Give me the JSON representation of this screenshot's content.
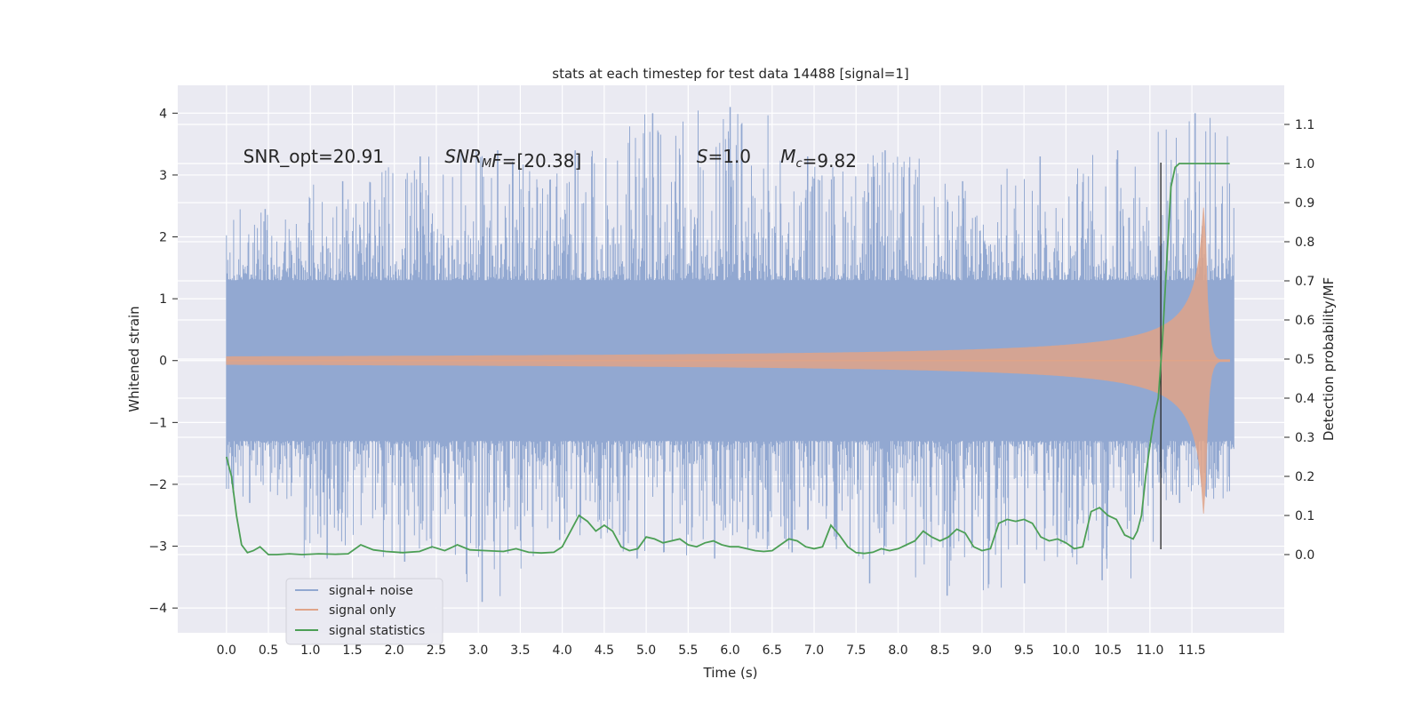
{
  "chart_data": {
    "type": "line",
    "title": "stats at each timestep for test data 14488 [signal=1]",
    "xlabel": "Time (s)",
    "ylabel": "Whitened strain",
    "y2label": "Detection probability/MF",
    "xlim": [
      -0.58,
      12.6
    ],
    "ylim": [
      -4.4,
      4.45
    ],
    "y2lim": [
      -0.2,
      1.2
    ],
    "xticks": [
      0.0,
      0.5,
      1.0,
      1.5,
      2.0,
      2.5,
      3.0,
      3.5,
      4.0,
      4.5,
      5.0,
      5.5,
      6.0,
      6.5,
      7.0,
      7.5,
      8.0,
      8.5,
      9.0,
      9.5,
      10.0,
      10.5,
      11.0,
      11.5
    ],
    "xtick_labels": [
      "0.0",
      "0.5",
      "1.0",
      "1.5",
      "2.0",
      "2.5",
      "3.0",
      "3.5",
      "4.0",
      "4.5",
      "5.0",
      "5.5",
      "6.0",
      "6.5",
      "7.0",
      "7.5",
      "8.0",
      "8.5",
      "9.0",
      "9.5",
      "10.0",
      "10.5",
      "11.0",
      "11.5"
    ],
    "yticks": [
      -4,
      -3,
      -2,
      -1,
      0,
      1,
      2,
      3,
      4
    ],
    "ytick_labels": [
      "−4",
      "−3",
      "−2",
      "−1",
      "0",
      "1",
      "2",
      "3",
      "4"
    ],
    "y2ticks": [
      0.0,
      0.1,
      0.2,
      0.3,
      0.4,
      0.5,
      0.6,
      0.7,
      0.8,
      0.9,
      1.0,
      1.1
    ],
    "y2tick_labels": [
      "0.0",
      "0.1",
      "0.2",
      "0.3",
      "0.4",
      "0.5",
      "0.6",
      "0.7",
      "0.8",
      "0.9",
      "1.0",
      "1.1"
    ],
    "annotations": [
      {
        "name": "snr-opt",
        "parts": [
          {
            "t": "SNR_opt=20.91",
            "i": false
          }
        ],
        "x": 0.2,
        "y": 3.3
      },
      {
        "name": "snr-mf",
        "parts": [
          {
            "t": "SNR",
            "i": true
          },
          {
            "t": "M",
            "i": true,
            "sub": true
          },
          {
            "t": "F",
            "i": true
          },
          {
            "t": "=[20.38]",
            "i": false
          }
        ],
        "x": 2.6,
        "y": 3.3
      },
      {
        "name": "s-value",
        "parts": [
          {
            "t": "S",
            "i": true
          },
          {
            "t": "=1.0",
            "i": false
          }
        ],
        "x": 5.6,
        "y": 3.3
      },
      {
        "name": "chirp-mass",
        "parts": [
          {
            "t": "M",
            "i": true
          },
          {
            "t": "c",
            "i": true,
            "sub": true
          },
          {
            "t": "=9.82",
            "i": false
          }
        ],
        "x": 6.6,
        "y": 3.3
      }
    ],
    "vline": {
      "x": 11.13,
      "y_from": -3.05,
      "y_to": 3.2
    },
    "series": [
      {
        "name": "signal+ noise",
        "color": "#92a8d1",
        "style": "band",
        "t_start": 0.0,
        "t_end": 12.0,
        "bulk_amp": 1.2,
        "extremes_upper": [
          2.45,
          2.9,
          3.3,
          3.4,
          3.4,
          4.0,
          4.1,
          3.3,
          3.4,
          2.9,
          3.3,
          3.4,
          4.0
        ],
        "extremes_lower": [
          -2.3,
          -3.2,
          -3.25,
          -3.9,
          -2.9,
          -3.2,
          -3.2,
          -3.1,
          -3.6,
          -3.8,
          -3.6,
          -3.55,
          -2.3
        ]
      },
      {
        "name": "signal only",
        "color": "#e0a489",
        "style": "chirp",
        "t_start": 0.0,
        "t_end": 11.95,
        "t_merger": 11.65,
        "peak_amp": 2.8
      },
      {
        "name": "signal statistics",
        "color": "#4c9f55",
        "style": "line",
        "axis": "right",
        "x": [
          0.0,
          0.06,
          0.12,
          0.18,
          0.25,
          0.32,
          0.4,
          0.5,
          0.6,
          0.75,
          0.9,
          1.1,
          1.3,
          1.45,
          1.6,
          1.75,
          1.9,
          2.1,
          2.3,
          2.45,
          2.6,
          2.75,
          2.9,
          3.1,
          3.3,
          3.45,
          3.6,
          3.75,
          3.9,
          4.0,
          4.1,
          4.2,
          4.3,
          4.4,
          4.5,
          4.6,
          4.7,
          4.8,
          4.9,
          5.0,
          5.1,
          5.2,
          5.3,
          5.4,
          5.5,
          5.6,
          5.7,
          5.8,
          5.9,
          6.0,
          6.1,
          6.2,
          6.3,
          6.4,
          6.5,
          6.6,
          6.7,
          6.8,
          6.9,
          7.0,
          7.1,
          7.2,
          7.3,
          7.4,
          7.5,
          7.6,
          7.7,
          7.8,
          7.9,
          8.0,
          8.1,
          8.2,
          8.3,
          8.4,
          8.5,
          8.6,
          8.7,
          8.8,
          8.9,
          9.0,
          9.1,
          9.2,
          9.3,
          9.4,
          9.5,
          9.6,
          9.7,
          9.8,
          9.9,
          10.0,
          10.1,
          10.2,
          10.3,
          10.4,
          10.5,
          10.6,
          10.7,
          10.8,
          10.85,
          10.9,
          10.95,
          11.0,
          11.05,
          11.1,
          11.15,
          11.2,
          11.25,
          11.3,
          11.35,
          11.45,
          11.6,
          11.8,
          11.95
        ],
        "y": [
          0.25,
          0.2,
          0.1,
          0.025,
          0.005,
          0.01,
          0.02,
          0.0,
          0.0,
          0.002,
          0.0,
          0.002,
          0.001,
          0.002,
          0.025,
          0.012,
          0.008,
          0.005,
          0.008,
          0.02,
          0.01,
          0.025,
          0.012,
          0.01,
          0.008,
          0.015,
          0.006,
          0.004,
          0.006,
          0.02,
          0.06,
          0.1,
          0.085,
          0.06,
          0.075,
          0.06,
          0.02,
          0.01,
          0.015,
          0.045,
          0.04,
          0.03,
          0.035,
          0.04,
          0.025,
          0.02,
          0.03,
          0.035,
          0.025,
          0.02,
          0.02,
          0.015,
          0.01,
          0.008,
          0.01,
          0.025,
          0.04,
          0.035,
          0.02,
          0.015,
          0.02,
          0.075,
          0.05,
          0.02,
          0.005,
          0.003,
          0.006,
          0.015,
          0.01,
          0.015,
          0.025,
          0.035,
          0.06,
          0.045,
          0.035,
          0.045,
          0.065,
          0.055,
          0.02,
          0.01,
          0.015,
          0.08,
          0.09,
          0.085,
          0.09,
          0.08,
          0.045,
          0.035,
          0.04,
          0.03,
          0.015,
          0.02,
          0.11,
          0.12,
          0.1,
          0.09,
          0.05,
          0.04,
          0.06,
          0.1,
          0.2,
          0.28,
          0.35,
          0.4,
          0.55,
          0.75,
          0.94,
          0.99,
          1.0,
          1.0,
          1.0,
          1.0,
          1.0
        ]
      }
    ],
    "legend": {
      "placement": "lower-left",
      "entries": [
        "signal+ noise",
        "signal only",
        "signal statistics"
      ]
    }
  },
  "colors": {
    "plot_bg": "#eaeaf2",
    "grid": "#ffffff",
    "text": "#262626",
    "vline": "#262626"
  }
}
